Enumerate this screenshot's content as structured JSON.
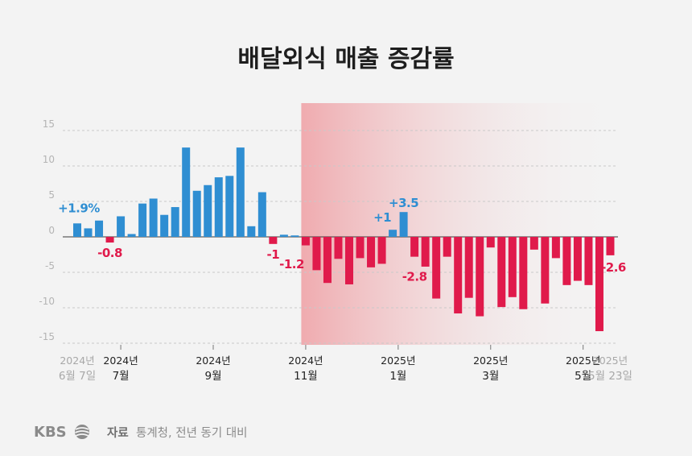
{
  "chart_data": {
    "type": "bar",
    "title": "배달외식 매출 증감률",
    "unit": "",
    "y_ticks": [
      "15",
      "10",
      "5",
      "0",
      "-5",
      "-10",
      "-15"
    ],
    "ylim": [
      -15,
      15
    ],
    "grid": true,
    "colors": {
      "positive": "#2f8ed2",
      "negative": "#e01a4b",
      "shade_start": "#ef9ea3"
    },
    "values": [
      1.9,
      1.2,
      2.3,
      -0.8,
      2.9,
      0.4,
      4.7,
      5.4,
      3.1,
      4.2,
      12.6,
      6.5,
      7.3,
      8.4,
      8.6,
      12.6,
      1.5,
      6.3,
      -1.0,
      0.3,
      0.2,
      -1.2,
      -4.7,
      -6.5,
      -3.1,
      -6.7,
      -3.0,
      -4.3,
      -3.8,
      1.0,
      3.5,
      -2.8,
      -4.2,
      -8.7,
      -2.8,
      -10.8,
      -8.6,
      -11.2,
      -1.5,
      -9.9,
      -8.5,
      -10.2,
      -1.8,
      -9.4,
      -3.0,
      -6.8,
      -6.2,
      -6.8,
      -13.3,
      -2.6
    ],
    "highlight_start_index": 21,
    "data_labels": [
      {
        "index": 0,
        "text": "+1.9%"
      },
      {
        "index": 3,
        "text": "-0.8"
      },
      {
        "index": 18,
        "text": "-1"
      },
      {
        "index": 21,
        "text": "-1.2"
      },
      {
        "index": 29,
        "text": "+1"
      },
      {
        "index": 30,
        "text": "+3.5"
      },
      {
        "index": 31,
        "text": "-2.8"
      },
      {
        "index": 49,
        "text": "-2.6"
      }
    ],
    "x_labels": [
      {
        "index": 0,
        "year": "2024년",
        "month": "6월 7일",
        "light": true
      },
      {
        "index": 4,
        "year": "2024년",
        "month": "7월",
        "light": false
      },
      {
        "index": 12.5,
        "year": "2024년",
        "month": "9월",
        "light": false
      },
      {
        "index": 21,
        "year": "2024년",
        "month": "11월",
        "light": false
      },
      {
        "index": 29.5,
        "year": "2025년",
        "month": "1월",
        "light": false
      },
      {
        "index": 38,
        "year": "2025년",
        "month": "3월",
        "light": false
      },
      {
        "index": 46.5,
        "year": "2025년",
        "month": "5월",
        "light": false
      },
      {
        "index": 49,
        "year": "2025년",
        "month": "5월 23일",
        "light": true
      }
    ]
  },
  "footer": {
    "logo": "KBS",
    "source_label": "자료",
    "source_text": "통계청, 전년 동기 대비"
  }
}
